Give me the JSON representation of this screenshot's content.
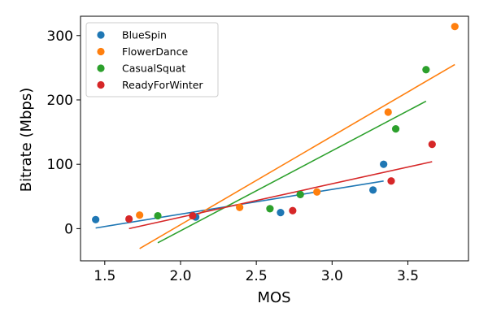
{
  "chart_data": {
    "type": "scatter",
    "title": "",
    "xlabel": "MOS",
    "ylabel": "Bitrate (Mbps)",
    "xlim": [
      1.34,
      3.9
    ],
    "ylim": [
      -50,
      330
    ],
    "xticks": [
      1.5,
      2.0,
      2.5,
      3.0,
      3.5
    ],
    "yticks": [
      0,
      100,
      200,
      300
    ],
    "xtick_labels": [
      "1.5",
      "2.0",
      "2.5",
      "3.0",
      "3.5"
    ],
    "ytick_labels": [
      "0",
      "100",
      "200",
      "300"
    ],
    "grid": false,
    "legend_position": "top-left",
    "series": [
      {
        "name": "BlueSpin",
        "color": "#1f77b4",
        "points": [
          [
            1.44,
            14
          ],
          [
            2.1,
            18
          ],
          [
            2.66,
            25
          ],
          [
            2.79,
            53
          ],
          [
            3.27,
            60
          ],
          [
            3.34,
            100
          ]
        ],
        "fit_line": [
          [
            1.44,
            1
          ],
          [
            3.34,
            74
          ]
        ]
      },
      {
        "name": "FlowerDance",
        "color": "#ff7f0e",
        "points": [
          [
            1.73,
            21
          ],
          [
            2.39,
            33
          ],
          [
            2.9,
            57
          ],
          [
            3.37,
            181
          ],
          [
            3.81,
            314
          ]
        ],
        "fit_line": [
          [
            1.73,
            -31
          ],
          [
            3.81,
            255
          ]
        ]
      },
      {
        "name": "CasualSquat",
        "color": "#2ca02c",
        "points": [
          [
            1.85,
            20
          ],
          [
            2.59,
            31
          ],
          [
            2.79,
            53
          ],
          [
            3.42,
            155
          ],
          [
            3.62,
            247
          ]
        ],
        "fit_line": [
          [
            1.85,
            -22
          ],
          [
            3.62,
            198
          ]
        ]
      },
      {
        "name": "ReadyForWinter",
        "color": "#d62728",
        "points": [
          [
            1.66,
            15
          ],
          [
            2.08,
            20
          ],
          [
            2.74,
            28
          ],
          [
            3.39,
            74
          ],
          [
            3.66,
            131
          ]
        ],
        "fit_line": [
          [
            1.66,
            0
          ],
          [
            3.66,
            104
          ]
        ]
      }
    ]
  }
}
